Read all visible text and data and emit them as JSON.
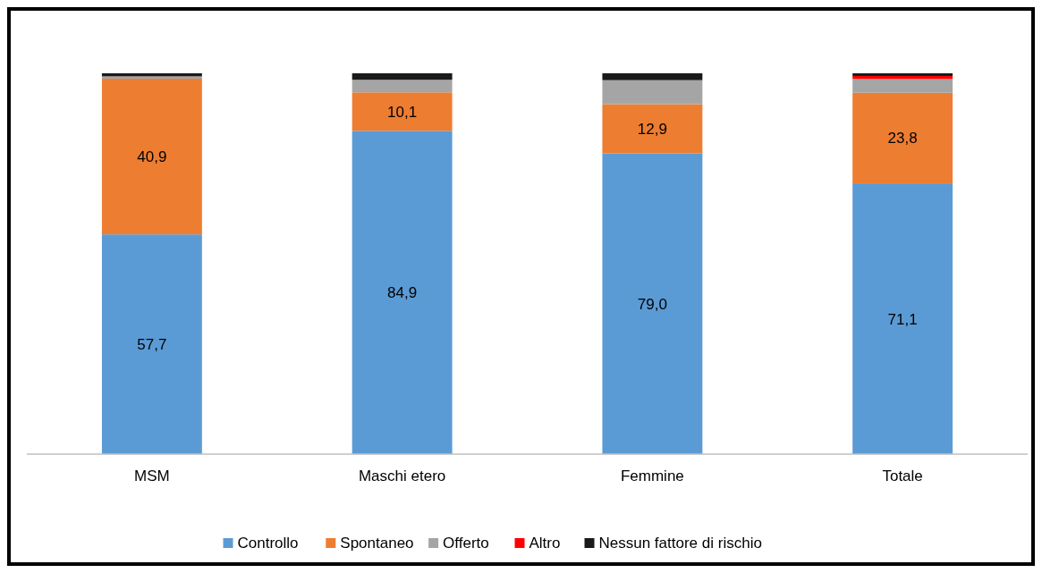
{
  "chart_data": {
    "type": "bar",
    "stacked": true,
    "categories": [
      "MSM",
      "Maschi etero",
      "Femmine",
      "Totale"
    ],
    "legend": "bottom",
    "series": [
      {
        "name": "Controllo",
        "color": "#5b9bd5",
        "values": [
          57.7,
          84.9,
          79.0,
          71.1
        ],
        "value_labels": [
          "57,7",
          "84,9",
          "79,0",
          "71,1"
        ]
      },
      {
        "name": "Spontaneo",
        "color": "#ed7d31",
        "values": [
          40.9,
          10.1,
          12.9,
          23.8
        ],
        "value_labels": [
          "40,9",
          "10,1",
          "12,9",
          "23,8"
        ]
      },
      {
        "name": "Offerto",
        "color": "#a5a5a5",
        "values": [
          0.6,
          3.3,
          6.3,
          3.6
        ]
      },
      {
        "name": "Altro",
        "color": "#ff0000",
        "values": [
          0,
          0,
          0,
          0.8
        ]
      },
      {
        "name": "Nessun fattore di rischio",
        "color": "#1a1a1a",
        "values": [
          0.8,
          1.7,
          1.8,
          0.7
        ]
      }
    ]
  }
}
